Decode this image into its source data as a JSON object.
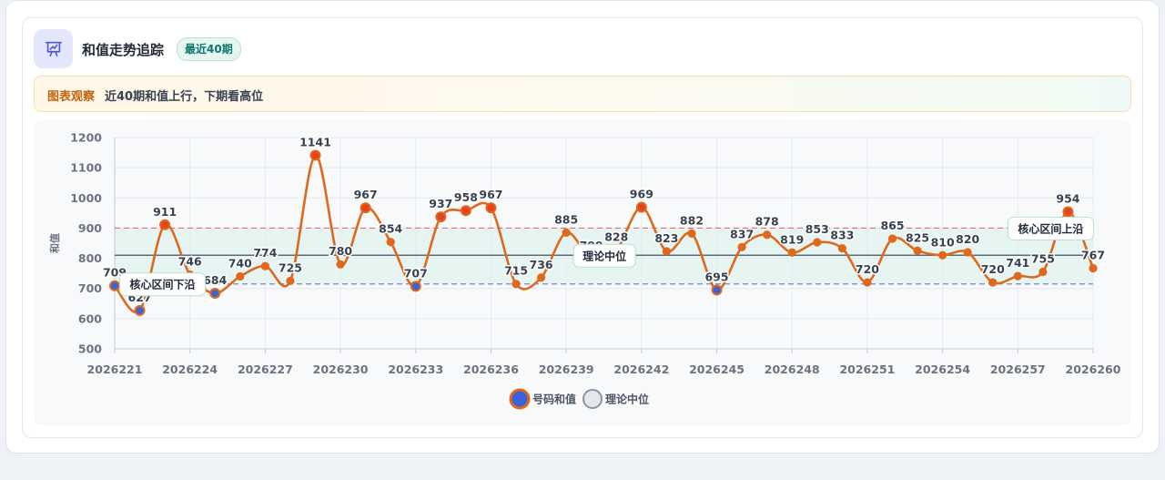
{
  "header": {
    "title": "和值走势追踪",
    "badge": "最近40期",
    "icon": "presentation-chart-icon"
  },
  "notice": {
    "tag": "图表观察",
    "text": "近40期和值上行，下期看高位"
  },
  "chart_data": {
    "type": "line",
    "ylabel": "和值",
    "xlabel": "",
    "ylim": [
      500,
      1200
    ],
    "yticks": [
      500,
      600,
      700,
      800,
      900,
      1000,
      1100,
      1200
    ],
    "x": [
      2026221,
      2026222,
      2026223,
      2026224,
      2026225,
      2026226,
      2026227,
      2026228,
      2026229,
      2026230,
      2026231,
      2026232,
      2026233,
      2026234,
      2026235,
      2026236,
      2026237,
      2026238,
      2026239,
      2026240,
      2026241,
      2026242,
      2026243,
      2026244,
      2026245,
      2026246,
      2026247,
      2026248,
      2026249,
      2026250,
      2026251,
      2026252,
      2026253,
      2026254,
      2026255,
      2026256,
      2026257,
      2026258,
      2026259,
      2026260
    ],
    "xticks": [
      2026221,
      2026224,
      2026227,
      2026230,
      2026233,
      2026236,
      2026239,
      2026242,
      2026245,
      2026248,
      2026251,
      2026254,
      2026257,
      2026260
    ],
    "grid": true,
    "legend_position": "bottom-center",
    "series": [
      {
        "name": "号码和值",
        "color": "#e0681c",
        "values": [
          709,
          627,
          911,
          746,
          684,
          740,
          774,
          725,
          1141,
          780,
          967,
          854,
          707,
          937,
          958,
          967,
          715,
          736,
          885,
          799,
          828,
          969,
          823,
          882,
          695,
          837,
          878,
          819,
          853,
          833,
          720,
          865,
          825,
          810,
          820,
          720,
          741,
          755,
          954,
          767
        ]
      },
      {
        "name": "理论中位",
        "color": "#5b6b7e",
        "constant": 810
      }
    ],
    "bands": {
      "upper": 900,
      "lower": 715,
      "upper_color": "#e06c6c",
      "lower_color": "#6b8fc9",
      "fill_color": "#e3f4ee"
    },
    "annotations": [
      {
        "text": "核心区间下沿",
        "x": 2026222,
        "y": 715
      },
      {
        "text": "理论中位",
        "x": 2026239,
        "y": 810
      },
      {
        "text": "核心区间上沿",
        "x": 2026259,
        "y": 900
      }
    ]
  }
}
